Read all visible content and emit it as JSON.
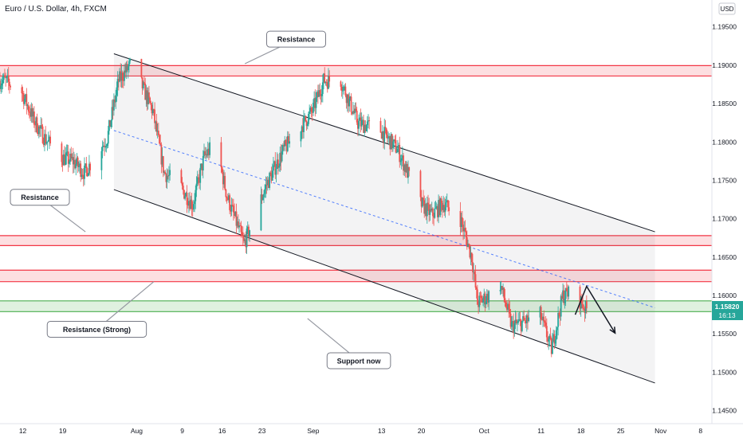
{
  "header": {
    "symbol": "Euro / U.S. Dollar, 4h, FXCM",
    "currency": "USD"
  },
  "price_tag": {
    "price": "1.15820",
    "countdown": "16:13"
  },
  "chart_data": {
    "type": "candlestick",
    "symbol": "Euro / U.S. Dollar",
    "timeframe": "4h",
    "y_ticks": [
      1.195,
      1.19,
      1.185,
      1.18,
      1.175,
      1.17,
      1.165,
      1.16,
      1.155,
      1.15,
      1.145
    ],
    "x_ticks": [
      "12",
      "19",
      "Aug",
      "9",
      "16",
      "23",
      "Sep",
      "13",
      "20",
      "Oct",
      "11",
      "18",
      "25",
      "Nov",
      "8"
    ],
    "ylim": [
      1.1433,
      1.1985
    ],
    "xlim": [
      "2021-07-08",
      "2021-11-10"
    ],
    "last_price": 1.1582,
    "price_path": [
      [
        "2021-07-09",
        1.188
      ],
      [
        "2021-07-12",
        1.1865
      ],
      [
        "2021-07-14",
        1.183
      ],
      [
        "2021-07-16",
        1.1805
      ],
      [
        "2021-07-19",
        1.178
      ],
      [
        "2021-07-21",
        1.1775
      ],
      [
        "2021-07-23",
        1.176
      ],
      [
        "2021-07-27",
        1.1805
      ],
      [
        "2021-07-29",
        1.188
      ],
      [
        "2021-07-31",
        1.19
      ],
      [
        "2021-08-02",
        1.1875
      ],
      [
        "2021-08-04",
        1.184
      ],
      [
        "2021-08-06",
        1.176
      ],
      [
        "2021-08-09",
        1.174
      ],
      [
        "2021-08-11",
        1.1718
      ],
      [
        "2021-08-13",
        1.178
      ],
      [
        "2021-08-15",
        1.18
      ],
      [
        "2021-08-17",
        1.173
      ],
      [
        "2021-08-20",
        1.1667
      ],
      [
        "2021-08-24",
        1.1745
      ],
      [
        "2021-08-27",
        1.179
      ],
      [
        "2021-09-01",
        1.184
      ],
      [
        "2021-09-03",
        1.188
      ],
      [
        "2021-09-06",
        1.188
      ],
      [
        "2021-09-09",
        1.1825
      ],
      [
        "2021-09-13",
        1.1815
      ],
      [
        "2021-09-16",
        1.179
      ],
      [
        "2021-09-20",
        1.172
      ],
      [
        "2021-09-22",
        1.1705
      ],
      [
        "2021-09-24",
        1.172
      ],
      [
        "2021-09-27",
        1.17
      ],
      [
        "2021-09-29",
        1.165
      ],
      [
        "2021-09-30",
        1.159
      ],
      [
        "2021-10-02",
        1.16
      ],
      [
        "2021-10-04",
        1.1615
      ],
      [
        "2021-10-06",
        1.156
      ],
      [
        "2021-10-08",
        1.1565
      ],
      [
        "2021-10-11",
        1.1575
      ],
      [
        "2021-10-13",
        1.153
      ],
      [
        "2021-10-15",
        1.16
      ],
      [
        "2021-10-17",
        1.1605
      ],
      [
        "2021-10-19",
        1.1582
      ]
    ],
    "zones": [
      {
        "kind": "resistance",
        "y_top": 1.18995,
        "y_bottom": 1.1886
      },
      {
        "kind": "resistance",
        "y_top": 1.1678,
        "y_bottom": 1.1665
      },
      {
        "kind": "resistance",
        "y_top": 1.1633,
        "y_bottom": 1.1618
      },
      {
        "kind": "support",
        "y_top": 1.1593,
        "y_bottom": 1.1579
      }
    ],
    "channel": {
      "upper": [
        [
          "2021-07-28",
          1.1915
        ],
        [
          "2021-10-31",
          1.1683
        ]
      ],
      "lower": [
        [
          "2021-07-28",
          1.1738
        ],
        [
          "2021-10-31",
          1.1486
        ]
      ],
      "mid": [
        [
          "2021-07-28",
          1.1815
        ],
        [
          "2021-10-31",
          1.1584
        ]
      ]
    },
    "projection": [
      [
        "2021-10-17",
        1.1575
      ],
      [
        "2021-10-19",
        1.1612
      ],
      [
        "2021-10-24",
        1.1551
      ]
    ],
    "annotations": [
      {
        "text": "Resistance",
        "date": "2021-08-29",
        "price": 1.1934,
        "target": [
          "2021-08-20",
          1.1902
        ]
      },
      {
        "text": "Resistance",
        "date": "2021-07-15",
        "price": 1.1728,
        "target": [
          "2021-07-23",
          1.1683
        ]
      },
      {
        "text": "Resistance (Strong)",
        "date": "2021-07-25",
        "price": 1.1556,
        "target": [
          "2021-08-04",
          1.1618
        ]
      },
      {
        "text": "Support now",
        "date": "2021-09-09",
        "price": 1.1515,
        "target": [
          "2021-08-31",
          1.157
        ]
      }
    ]
  }
}
